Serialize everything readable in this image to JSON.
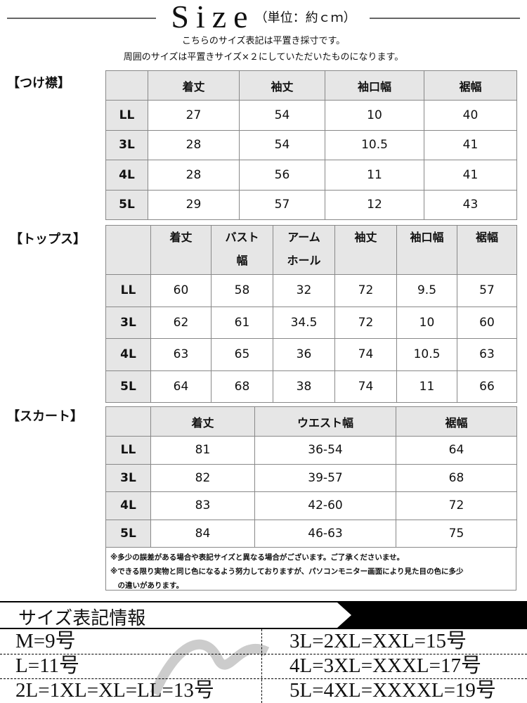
{
  "header": {
    "title": "Size",
    "unit": "（単位：約ｃｍ）",
    "note1": "こちらのサイズ表記は平置き採寸です。",
    "note2": "周囲のサイズは平置きサイズ×２にしていただいたものになります。"
  },
  "collar": {
    "label": "【つけ襟】",
    "columns": [
      "",
      "着丈",
      "袖丈",
      "袖口幅",
      "裾幅"
    ],
    "rows": [
      [
        "LL",
        "27",
        "54",
        "10",
        "40"
      ],
      [
        "3L",
        "28",
        "54",
        "10.5",
        "41"
      ],
      [
        "4L",
        "28",
        "56",
        "11",
        "41"
      ],
      [
        "5L",
        "29",
        "57",
        "12",
        "43"
      ]
    ]
  },
  "tops": {
    "label": "【トップス】",
    "columns": [
      "",
      "着丈",
      "バスト\n幅",
      "アーム\nホール",
      "袖丈",
      "袖口幅",
      "裾幅"
    ],
    "rows": [
      [
        "LL",
        "60",
        "58",
        "32",
        "72",
        "9.5",
        "57"
      ],
      [
        "3L",
        "62",
        "61",
        "34.5",
        "72",
        "10",
        "60"
      ],
      [
        "4L",
        "63",
        "65",
        "36",
        "74",
        "10.5",
        "63"
      ],
      [
        "5L",
        "64",
        "68",
        "38",
        "74",
        "11",
        "66"
      ]
    ]
  },
  "skirt": {
    "label": "【スカート】",
    "columns": [
      "",
      "着丈",
      "ウエスト幅",
      "裾幅"
    ],
    "rows": [
      [
        "LL",
        "81",
        "36-54",
        "64"
      ],
      [
        "3L",
        "82",
        "39-57",
        "68"
      ],
      [
        "4L",
        "83",
        "42-60",
        "72"
      ],
      [
        "5L",
        "84",
        "46-63",
        "75"
      ]
    ]
  },
  "notes": [
    "※多少の誤差がある場合や表記サイズと異なる場合がございます。ご了承くださいませ。",
    "※できる限り実物と同じ色になるよう努力しておりますが、パソコンモニター画面により見た目の色に多少",
    "　の違いがあります。"
  ],
  "size_info": {
    "title": "サイズ表記情報",
    "left": [
      "M=9号",
      "L=11号",
      "2L=1XL=XL=LL=13号"
    ],
    "right": [
      "3L=2XL=XXL=15号",
      "4L=3XL=XXXL=17号",
      "5L=4XL=XXXXL=19号"
    ]
  }
}
